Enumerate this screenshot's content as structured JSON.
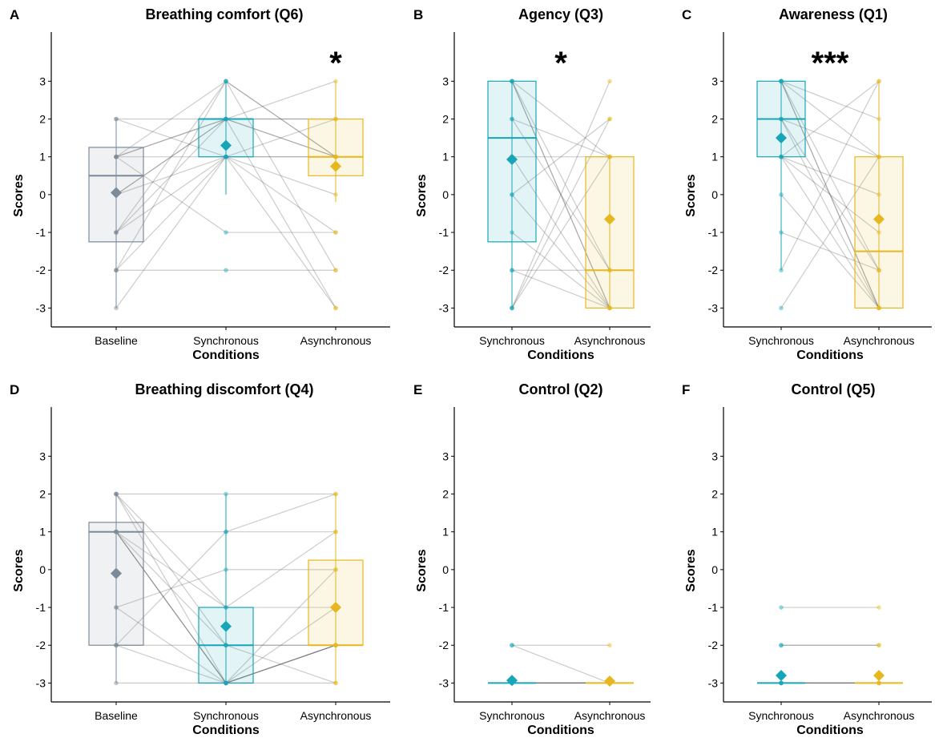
{
  "colors": {
    "Baseline": "#7c8a9a",
    "Synchronous": "#17a6b8",
    "Asynchronous": "#e6b71e",
    "line": "#555555"
  },
  "chart_data": [
    {
      "id": "A",
      "type": "box",
      "title": "Breathing comfort (Q6)",
      "xlabel": "Conditions",
      "ylabel": "Scores",
      "ylim": [
        -3.5,
        4.3
      ],
      "yticks": [
        -3,
        -2,
        -1,
        0,
        1,
        2,
        3
      ],
      "categories": [
        "Baseline",
        "Synchronous",
        "Asynchronous"
      ],
      "boxes": [
        {
          "q1": -1.25,
          "median": 0.5,
          "q3": 1.25,
          "min": -3,
          "max": 2,
          "mean": 0.05
        },
        {
          "q1": 1,
          "median": 2,
          "q3": 2,
          "min": 0,
          "max": 3,
          "mean": 1.3
        },
        {
          "q1": 0.5,
          "median": 1,
          "q3": 2,
          "min": -0.2,
          "max": 3,
          "mean": 0.75
        }
      ],
      "subjects": [
        [
          2,
          2,
          2
        ],
        [
          2,
          1,
          1
        ],
        [
          1,
          3,
          1
        ],
        [
          1,
          2,
          3
        ],
        [
          1,
          1,
          -1
        ],
        [
          0,
          2,
          1
        ],
        [
          -1,
          2,
          1
        ],
        [
          -1,
          3,
          -2
        ],
        [
          -2,
          1,
          2
        ],
        [
          -2,
          -2,
          -2
        ],
        [
          -2,
          3,
          1
        ],
        [
          -3,
          1,
          -3
        ],
        [
          1,
          -1,
          -1
        ],
        [
          0,
          2,
          2
        ],
        [
          -1,
          1,
          0
        ],
        [
          1,
          2,
          -3
        ],
        [
          0,
          1,
          1
        ]
      ],
      "significance": "*",
      "significance_at": 2
    },
    {
      "id": "B",
      "type": "box",
      "title": "Agency (Q3)",
      "xlabel": "Conditions",
      "ylabel": "Scores",
      "ylim": [
        -3.5,
        4.3
      ],
      "yticks": [
        -3,
        -2,
        -1,
        0,
        1,
        2,
        3
      ],
      "categories": [
        "Synchronous",
        "Asynchronous"
      ],
      "boxes": [
        {
          "q1": -1.25,
          "median": 1.5,
          "q3": 3,
          "min": -3,
          "max": 3,
          "mean": 0.93
        },
        {
          "q1": -3,
          "median": -2,
          "q3": 1,
          "min": -3,
          "max": 1,
          "mean": -0.65
        }
      ],
      "subjects": [
        [
          3,
          -3
        ],
        [
          3,
          1
        ],
        [
          3,
          -2
        ],
        [
          3,
          -3
        ],
        [
          2,
          1
        ],
        [
          2,
          -2
        ],
        [
          1,
          1
        ],
        [
          0,
          -3
        ],
        [
          -1,
          -3
        ],
        [
          -2,
          -2
        ],
        [
          -2,
          -3
        ],
        [
          -3,
          3
        ],
        [
          -3,
          2
        ],
        [
          -3,
          1
        ],
        [
          0,
          2
        ],
        [
          1,
          -3
        ]
      ],
      "significance": "*",
      "significance_at": 0.5
    },
    {
      "id": "C",
      "type": "box",
      "title": "Awareness (Q1)",
      "xlabel": "Conditions",
      "ylabel": "Scores",
      "ylim": [
        -3.5,
        4.3
      ],
      "yticks": [
        -3,
        -2,
        -1,
        0,
        1,
        2,
        3
      ],
      "categories": [
        "Synchronous",
        "Asynchronous"
      ],
      "boxes": [
        {
          "q1": 1,
          "median": 2,
          "q3": 3,
          "min": -2,
          "max": 3,
          "mean": 1.5
        },
        {
          "q1": -3,
          "median": -1.5,
          "q3": 1,
          "min": -3,
          "max": 3,
          "mean": -0.65
        }
      ],
      "subjects": [
        [
          3,
          1
        ],
        [
          3,
          2
        ],
        [
          3,
          -2
        ],
        [
          3,
          -3
        ],
        [
          3,
          -3
        ],
        [
          2,
          1
        ],
        [
          2,
          -2
        ],
        [
          1,
          -3
        ],
        [
          1,
          0
        ],
        [
          1,
          -1
        ],
        [
          0,
          -3
        ],
        [
          -1,
          -2
        ],
        [
          -2,
          3
        ],
        [
          -3,
          1
        ],
        [
          1,
          3
        ],
        [
          2,
          -3
        ]
      ],
      "significance": "***",
      "significance_at": 0.5
    },
    {
      "id": "D",
      "type": "box",
      "title": "Breathing discomfort (Q4)",
      "xlabel": "Conditions",
      "ylabel": "Scores",
      "ylim": [
        -3.5,
        4.3
      ],
      "yticks": [
        -3,
        -2,
        -1,
        0,
        1,
        2,
        3
      ],
      "categories": [
        "Baseline",
        "Synchronous",
        "Asynchronous"
      ],
      "boxes": [
        {
          "q1": -2,
          "median": 1,
          "q3": 1.25,
          "min": -3,
          "max": 2,
          "mean": -0.1
        },
        {
          "q1": -3,
          "median": -2,
          "q3": -1,
          "min": -3,
          "max": 2,
          "mean": -1.5
        },
        {
          "q1": -2,
          "median": -2,
          "q3": 0.25,
          "min": -3,
          "max": 2,
          "mean": -1
        }
      ],
      "subjects": [
        [
          2,
          2,
          2
        ],
        [
          2,
          -3,
          -2
        ],
        [
          2,
          -2,
          -3
        ],
        [
          1,
          -3,
          -2
        ],
        [
          1,
          1,
          1
        ],
        [
          1,
          -3,
          0
        ],
        [
          1,
          -2,
          -2
        ],
        [
          -1,
          -3,
          -2
        ],
        [
          -1,
          0,
          0
        ],
        [
          -2,
          -2,
          -2
        ],
        [
          -2,
          -3,
          -1
        ],
        [
          -3,
          -3,
          -3
        ],
        [
          1,
          -1,
          1
        ],
        [
          2,
          -1,
          -1
        ],
        [
          -2,
          1,
          2
        ],
        [
          1,
          -3,
          -2
        ]
      ],
      "significance": "",
      "significance_at": null
    },
    {
      "id": "E",
      "type": "box",
      "title": "Control (Q2)",
      "xlabel": "Conditions",
      "ylabel": "Scores",
      "ylim": [
        -3.5,
        4.3
      ],
      "yticks": [
        -3,
        -2,
        -1,
        0,
        1,
        2,
        3
      ],
      "categories": [
        "Synchronous",
        "Asynchronous"
      ],
      "boxes": [
        {
          "q1": -3,
          "median": -3,
          "q3": -3,
          "min": -3,
          "max": -3,
          "mean": -2.93
        },
        {
          "q1": -3,
          "median": -3,
          "q3": -3,
          "min": -3,
          "max": -3,
          "mean": -2.95
        }
      ],
      "subjects": [
        [
          -2,
          -2
        ],
        [
          -2,
          -3
        ],
        [
          -3,
          -3
        ],
        [
          -3,
          -3
        ],
        [
          -3,
          -3
        ],
        [
          -3,
          -3
        ],
        [
          -3,
          -3
        ],
        [
          -3,
          -3
        ]
      ],
      "significance": "",
      "significance_at": null
    },
    {
      "id": "F",
      "type": "box",
      "title": "Control (Q5)",
      "xlabel": "Conditions",
      "ylabel": "Scores",
      "ylim": [
        -3.5,
        4.3
      ],
      "yticks": [
        -3,
        -2,
        -1,
        0,
        1,
        2,
        3
      ],
      "categories": [
        "Synchronous",
        "Asynchronous"
      ],
      "boxes": [
        {
          "q1": -3,
          "median": -3,
          "q3": -3,
          "min": -3,
          "max": -3,
          "mean": -2.8
        },
        {
          "q1": -3,
          "median": -3,
          "q3": -3,
          "min": -3,
          "max": -3,
          "mean": -2.8
        }
      ],
      "subjects": [
        [
          -1,
          -1
        ],
        [
          -2,
          -2
        ],
        [
          -2,
          -2
        ],
        [
          -3,
          -3
        ],
        [
          -3,
          -3
        ],
        [
          -3,
          -3
        ],
        [
          -3,
          -3
        ],
        [
          -3,
          -3
        ]
      ],
      "significance": "",
      "significance_at": null
    }
  ]
}
